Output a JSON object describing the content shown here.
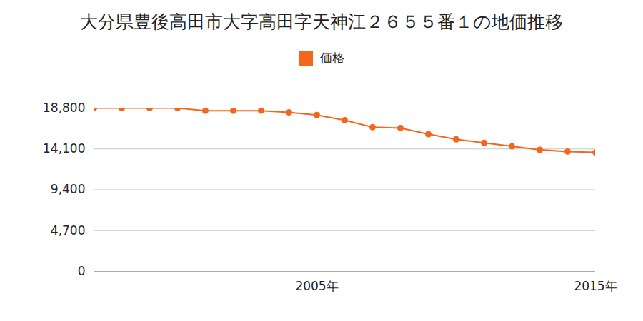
{
  "chart_data": {
    "type": "line",
    "title": "大分県豊後高田市大字高田字天神江２６５５番１の地価推移",
    "x": [
      1997,
      1998,
      1999,
      2000,
      2001,
      2002,
      2003,
      2004,
      2005,
      2006,
      2007,
      2008,
      2009,
      2010,
      2011,
      2012,
      2013,
      2014,
      2015
    ],
    "series": [
      {
        "name": "価格",
        "color": "#f4661b",
        "marker": "circle",
        "values": [
          18800,
          18800,
          18800,
          18800,
          18500,
          18500,
          18500,
          18300,
          18000,
          17400,
          16600,
          16500,
          15800,
          15200,
          14800,
          14400,
          14000,
          13800,
          13700
        ]
      }
    ],
    "xlim": [
      1997,
      2015
    ],
    "xticks": [
      {
        "value": 2005,
        "label": "2005年"
      },
      {
        "value": 2015,
        "label": "2015年"
      }
    ],
    "ylim": [
      0,
      18800
    ],
    "yticks": [
      0,
      {
        "value": 4700,
        "label": "4,700"
      },
      {
        "value": 9400,
        "label": "9,400"
      },
      {
        "value": 14100,
        "label": "14,100"
      },
      {
        "value": 18800,
        "label": "18,800"
      }
    ],
    "grid": "y",
    "legend": "top"
  }
}
